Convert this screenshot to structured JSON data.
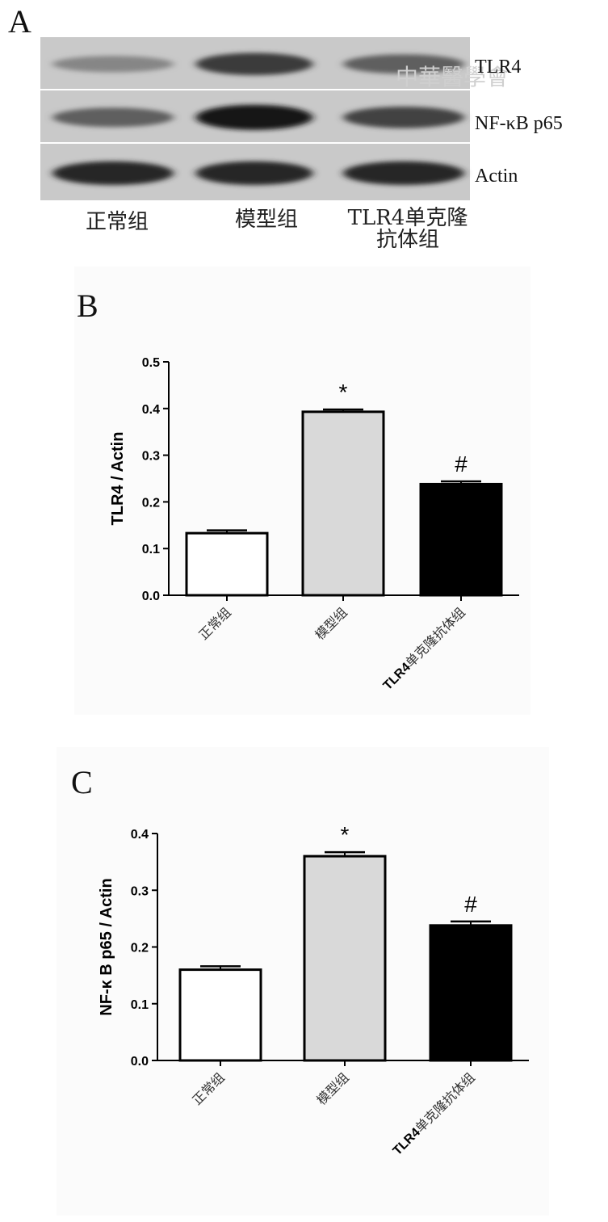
{
  "blot": {
    "panel_letter": "A",
    "rows": [
      "TLR4",
      "NF-κB p65",
      "Actin"
    ],
    "groups": [
      {
        "line1": "正常组",
        "line2": ""
      },
      {
        "line1": "模型组",
        "line2": ""
      },
      {
        "line1": "TLR4单克隆",
        "line2": "抗体组"
      }
    ],
    "band_intensity": [
      [
        0.35,
        0.75,
        0.55
      ],
      [
        0.55,
        0.95,
        0.7
      ],
      [
        0.85,
        0.85,
        0.85
      ]
    ],
    "watermark": "中華醫學會"
  },
  "colors": {
    "normal_bar": "#ffffff",
    "model_bar": "#d9d9d9",
    "antibody_bar": "#000000",
    "blot_background": "#c9c9c9"
  },
  "chart_data": [
    {
      "type": "bar",
      "panel": "B",
      "ylabel": "TLR4 / Actin",
      "xlabel": "",
      "categories": [
        "正常组",
        "模型组",
        "TLR4单克隆抗体组"
      ],
      "values": [
        0.133,
        0.393,
        0.238
      ],
      "errors": [
        0.006,
        0.005,
        0.006
      ],
      "annotations": [
        "",
        "*",
        "#"
      ],
      "ylim": [
        0,
        0.5
      ],
      "yticks": [
        "0.0",
        "0.1",
        "0.2",
        "0.3",
        "0.4",
        "0.5"
      ]
    },
    {
      "type": "bar",
      "panel": "C",
      "ylabel": "NF-κ B p65 / Actin",
      "xlabel": "",
      "categories": [
        "正常组",
        "模型组",
        "TLR4单克隆抗体组"
      ],
      "values": [
        0.16,
        0.36,
        0.238
      ],
      "errors": [
        0.006,
        0.007,
        0.007
      ],
      "annotations": [
        "",
        "*",
        "#"
      ],
      "ylim": [
        0,
        0.4
      ],
      "yticks": [
        "0.0",
        "0.1",
        "0.2",
        "0.3",
        "0.4"
      ]
    }
  ]
}
